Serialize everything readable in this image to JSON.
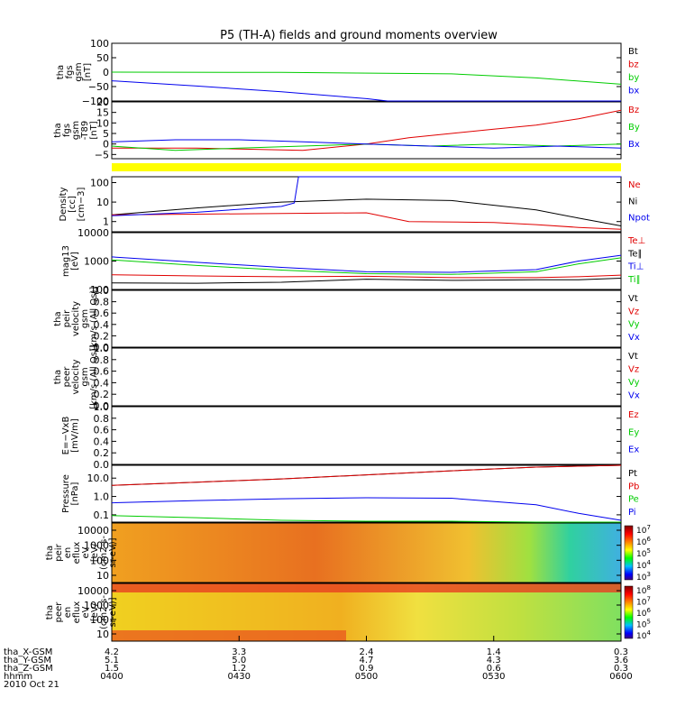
{
  "title": "P5 (TH-A) fields and ground moments overview",
  "colors": {
    "red": "#e00000",
    "green": "#00cc00",
    "blue": "#0000ee",
    "black": "#000000",
    "yellow": "#ffff00"
  },
  "chart_data": [
    {
      "id": "fgs",
      "type": "line",
      "ylabel": [
        "tha",
        "fgs",
        "gsm",
        "[nT]"
      ],
      "ylim": [
        -100,
        100
      ],
      "yticks": [
        "100",
        "50",
        "0",
        "−50",
        "−100"
      ],
      "legend": [
        {
          "label": "Bt",
          "color": "black"
        },
        {
          "label": "bz",
          "color": "red"
        },
        {
          "label": "by",
          "color": "green"
        },
        {
          "label": "bx",
          "color": "blue"
        }
      ],
      "series": [
        {
          "color": "green",
          "x": [
            0,
            40,
            80,
            100,
            120
          ],
          "y": [
            0,
            -1,
            -6,
            -20,
            -42
          ]
        },
        {
          "color": "blue",
          "x": [
            0,
            20,
            40,
            60,
            65,
            120
          ],
          "y": [
            -30,
            -48,
            -68,
            -92,
            -100,
            -100
          ]
        }
      ]
    },
    {
      "id": "fgs_t89",
      "type": "line",
      "ylabel": [
        "tha",
        "fgs",
        "gsm",
        "-T89",
        "[nT]"
      ],
      "ylim": [
        -7,
        20
      ],
      "yticks": [
        "20",
        "15",
        "10",
        "5",
        "0",
        "−5"
      ],
      "legend": [
        {
          "label": "Bz",
          "color": "red"
        },
        {
          "label": "By",
          "color": "green"
        },
        {
          "label": "Bx",
          "color": "blue"
        }
      ],
      "series": [
        {
          "color": "red",
          "x": [
            0,
            20,
            45,
            60,
            70,
            80,
            90,
            100,
            110,
            120
          ],
          "y": [
            -2,
            -2,
            -3,
            0,
            3,
            5,
            7,
            9,
            12,
            16
          ]
        },
        {
          "color": "green",
          "x": [
            0,
            15,
            30,
            45,
            60,
            75,
            90,
            105,
            120
          ],
          "y": [
            -1,
            -3,
            -2,
            -1,
            0,
            -1,
            0,
            -1,
            0
          ]
        },
        {
          "color": "blue",
          "x": [
            0,
            15,
            30,
            45,
            60,
            75,
            90,
            105,
            120
          ],
          "y": [
            1,
            2,
            2,
            1,
            0,
            -1,
            -2,
            -1,
            -2
          ]
        }
      ]
    },
    {
      "id": "density",
      "type": "line",
      "scale": "log",
      "ylabel": [
        "Density",
        "[cc]",
        "[cm−3]"
      ],
      "ylim": [
        0.3,
        200
      ],
      "yticks": [
        "100",
        "10",
        "1"
      ],
      "legend": [
        {
          "label": "Ne",
          "color": "red"
        },
        {
          "label": "Ni",
          "color": "black"
        },
        {
          "label": "Npot",
          "color": "blue"
        }
      ],
      "series": [
        {
          "color": "black",
          "x": [
            0,
            20,
            40,
            60,
            80,
            100,
            110,
            120
          ],
          "y": [
            2.2,
            5,
            10,
            14,
            12,
            4,
            1.5,
            0.6
          ]
        },
        {
          "color": "red",
          "x": [
            0,
            20,
            40,
            60,
            70,
            90,
            100,
            110,
            120
          ],
          "y": [
            2.2,
            2.4,
            2.6,
            2.8,
            1,
            0.9,
            0.7,
            0.5,
            0.4
          ]
        },
        {
          "color": "blue",
          "x": [
            0,
            20,
            40,
            43,
            44,
            120
          ],
          "y": [
            2,
            3,
            6,
            9,
            200,
            200
          ]
        }
      ]
    },
    {
      "id": "temperature",
      "type": "line",
      "scale": "log",
      "ylabel": [
        "mag13",
        "[eV]"
      ],
      "ylim": [
        100,
        10000
      ],
      "yticks": [
        "10000",
        "1000",
        "100"
      ],
      "legend": [
        {
          "label": "Te⊥",
          "color": "red"
        },
        {
          "label": "Te∥",
          "color": "black"
        },
        {
          "label": "Ti⊥",
          "color": "blue"
        },
        {
          "label": "Ti∥",
          "color": "green"
        }
      ],
      "series": [
        {
          "color": "blue",
          "x": [
            0,
            20,
            40,
            60,
            80,
            100,
            110,
            120
          ],
          "y": [
            1400,
            900,
            600,
            420,
            400,
            500,
            1000,
            1600
          ]
        },
        {
          "color": "green",
          "x": [
            0,
            20,
            40,
            60,
            80,
            100,
            110,
            120
          ],
          "y": [
            1100,
            700,
            480,
            360,
            340,
            420,
            800,
            1300
          ]
        },
        {
          "color": "red",
          "x": [
            0,
            20,
            40,
            60,
            80,
            100,
            110,
            120
          ],
          "y": [
            330,
            300,
            280,
            290,
            260,
            260,
            280,
            320
          ]
        },
        {
          "color": "black",
          "x": [
            0,
            20,
            40,
            60,
            80,
            100,
            110,
            120
          ],
          "y": [
            170,
            165,
            180,
            230,
            210,
            220,
            220,
            250
          ]
        }
      ]
    },
    {
      "id": "peir_velocity",
      "type": "line",
      "ylabel": [
        "tha",
        "peir",
        "velocity",
        "gsm",
        "[km/s (All Qs)]"
      ],
      "ylim": [
        0,
        1
      ],
      "yticks": [
        "1.0",
        "0.8",
        "0.6",
        "0.4",
        "0.2",
        "0.0"
      ],
      "legend": [
        {
          "label": "Vt",
          "color": "black"
        },
        {
          "label": "Vz",
          "color": "red"
        },
        {
          "label": "Vy",
          "color": "green"
        },
        {
          "label": "Vx",
          "color": "blue"
        }
      ],
      "series": []
    },
    {
      "id": "peer_velocity",
      "type": "line",
      "ylabel": [
        "tha",
        "peer",
        "velocity",
        "gsm",
        "[km/s (All Qs)]"
      ],
      "ylim": [
        0,
        1
      ],
      "yticks": [
        "1.0",
        "0.8",
        "0.6",
        "0.4",
        "0.2",
        "0.0"
      ],
      "legend": [
        {
          "label": "Vt",
          "color": "black"
        },
        {
          "label": "Vz",
          "color": "red"
        },
        {
          "label": "Vy",
          "color": "green"
        },
        {
          "label": "Vx",
          "color": "blue"
        }
      ],
      "series": []
    },
    {
      "id": "efield",
      "type": "line",
      "ylabel": [
        "E=−VxB",
        "[mV/m]"
      ],
      "ylim": [
        0,
        1
      ],
      "yticks": [
        "1.0",
        "0.8",
        "0.6",
        "0.4",
        "0.2",
        "0.0"
      ],
      "legend": [
        {
          "label": "Ez",
          "color": "red"
        },
        {
          "label": "Ey",
          "color": "green"
        },
        {
          "label": "Ex",
          "color": "blue"
        }
      ],
      "series": []
    },
    {
      "id": "pressure",
      "type": "line",
      "scale": "log",
      "ylabel": [
        "Pressure",
        "[nPa]"
      ],
      "ylim": [
        0.04,
        50
      ],
      "yticks": [
        "10.0",
        "1.0",
        "0.1"
      ],
      "legend": [
        {
          "label": "Pt",
          "color": "black"
        },
        {
          "label": "Pb",
          "color": "red"
        },
        {
          "label": "Pe",
          "color": "green"
        },
        {
          "label": "Pi",
          "color": "blue"
        }
      ],
      "series": [
        {
          "color": "black",
          "x": [
            0,
            20,
            40,
            60,
            80,
            100,
            120
          ],
          "y": [
            4,
            6,
            9,
            15,
            25,
            40,
            60
          ]
        },
        {
          "color": "red",
          "x": [
            0,
            20,
            40,
            60,
            80,
            100,
            120
          ],
          "y": [
            4,
            6,
            9,
            15,
            25,
            40,
            60
          ]
        },
        {
          "color": "blue",
          "x": [
            0,
            20,
            40,
            60,
            80,
            100,
            110,
            120
          ],
          "y": [
            0.45,
            0.6,
            0.75,
            0.85,
            0.8,
            0.35,
            0.12,
            0.05
          ]
        },
        {
          "color": "green",
          "x": [
            0,
            20,
            40,
            60,
            80,
            100,
            110,
            120
          ],
          "y": [
            0.09,
            0.07,
            0.05,
            0.045,
            0.045,
            0.04,
            0.04,
            0.04
          ]
        }
      ]
    },
    {
      "id": "peir_spec",
      "type": "heatmap",
      "ylabel": [
        "tha",
        "peir",
        "en",
        "eflux",
        "eV",
        "[eV/",
        "(cm2-s-",
        "sr-eV)]"
      ],
      "yticks": [
        "10000",
        "1000",
        "100",
        "10"
      ],
      "colorbar": [
        "10^7",
        "10^6",
        "10^5",
        "10^4",
        "10^3"
      ]
    },
    {
      "id": "peer_spec",
      "type": "heatmap",
      "ylabel": [
        "tha",
        "peer",
        "en",
        "eflux",
        "eV",
        "[eV/",
        "(cm2-s-",
        "sr-eV)]"
      ],
      "yticks": [
        "10000",
        "1000",
        "100",
        "10"
      ],
      "colorbar": [
        "10^8",
        "10^7",
        "10^6",
        "10^5",
        "10^4"
      ]
    }
  ],
  "xaxis": {
    "rows": [
      {
        "label": "tha_X-GSM",
        "values": [
          "4.2",
          "3.3",
          "2.4",
          "1.4",
          "0.3"
        ]
      },
      {
        "label": "tha_Y-GSM",
        "values": [
          "5.1",
          "5.0",
          "4.7",
          "4.3",
          "3.6"
        ]
      },
      {
        "label": "tha_Z-GSM",
        "values": [
          "1.5",
          "1.2",
          "0.9",
          "0.6",
          "0.3"
        ]
      },
      {
        "label": "hhmm",
        "values": [
          "0400",
          "0430",
          "0500",
          "0530",
          "0600"
        ]
      }
    ],
    "date": "2010 Oct 21"
  }
}
